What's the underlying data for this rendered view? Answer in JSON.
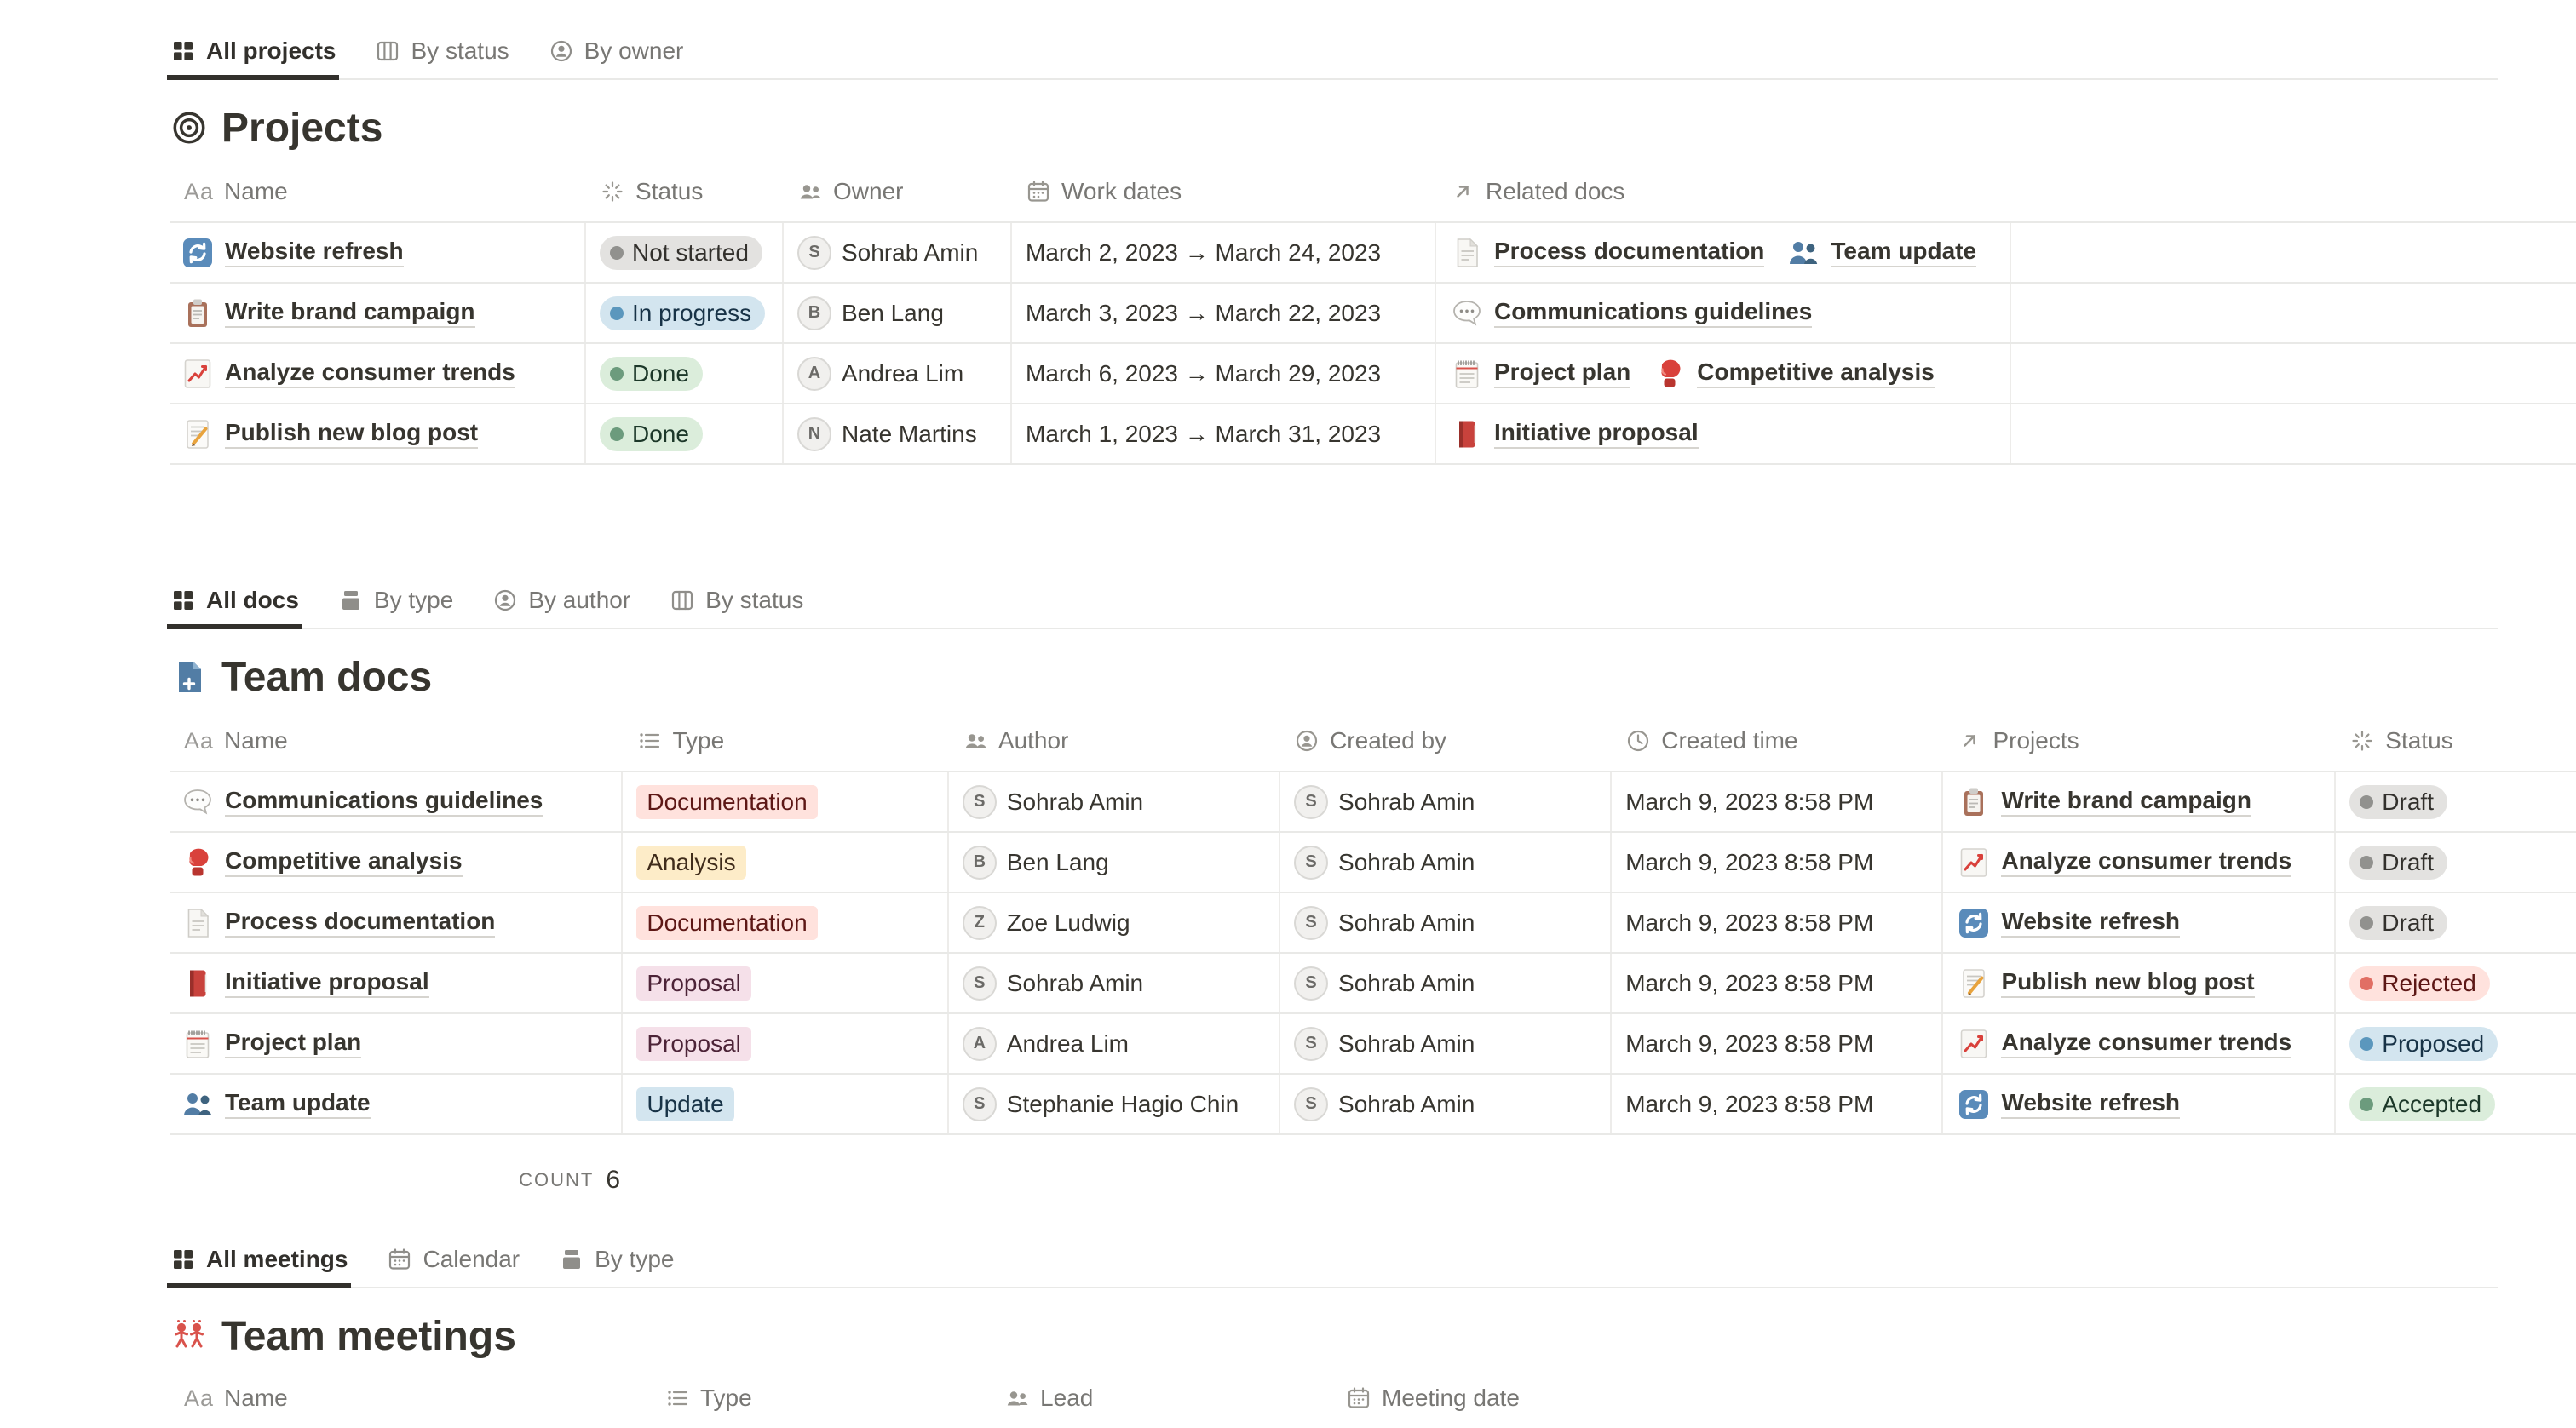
{
  "palette": {
    "row_border": "#E9E9E7",
    "text": "#37352F",
    "muted_text": "#787774",
    "accent_icon_red": "#D9534C",
    "accent_icon_blue": "#527DA5",
    "status": {
      "gray": {
        "bg": "#E3E2E0",
        "dot": "#91918E",
        "text": "#32302C"
      },
      "blue": {
        "bg": "#D3E5EF",
        "dot": "#5B97BD",
        "text": "#183347"
      },
      "green": {
        "bg": "#DBEDDB",
        "dot": "#6C9B7D",
        "text": "#1C3829"
      },
      "red": {
        "bg": "#FFE2DD",
        "dot": "#E16F64",
        "text": "#5D1715"
      }
    },
    "tag": {
      "red": {
        "bg": "#FFE2DD",
        "text": "#5D1715"
      },
      "yellow": {
        "bg": "#FDECC8",
        "text": "#402C1B"
      },
      "pink": {
        "bg": "#F5E0E9",
        "text": "#4C2337"
      },
      "blue": {
        "bg": "#D3E5EF",
        "text": "#183347"
      }
    }
  },
  "sections": [
    {
      "id": "projects",
      "tabs": [
        {
          "label": "All projects",
          "icon": "grid-view-icon",
          "active": true
        },
        {
          "label": "By status",
          "icon": "board-view-icon",
          "active": false
        },
        {
          "label": "By owner",
          "icon": "person-view-icon",
          "active": false
        }
      ],
      "title": {
        "icon": "target-icon",
        "text": "Projects"
      },
      "columns": [
        {
          "icon": "text-aa-icon",
          "label": "Name"
        },
        {
          "icon": "status-burst-icon",
          "label": "Status"
        },
        {
          "icon": "people-icon",
          "label": "Owner"
        },
        {
          "icon": "calendar-icon",
          "label": "Work dates"
        },
        {
          "icon": "arrow-ne-icon",
          "label": "Related docs"
        }
      ],
      "rows": [
        {
          "icon": "refresh-arrows-icon",
          "name": "Website refresh",
          "status": {
            "label": "Not started",
            "color": "gray"
          },
          "owner": "Sohrab Amin",
          "dates": "March 2, 2023 → March 24, 2023",
          "related": [
            {
              "icon": "page-icon",
              "label": "Process documentation"
            },
            {
              "icon": "people-blue-icon",
              "label": "Team update"
            }
          ]
        },
        {
          "icon": "clipboard-icon",
          "name": "Write brand campaign",
          "status": {
            "label": "In progress",
            "color": "blue"
          },
          "owner": "Ben Lang",
          "dates": "March 3, 2023 → March 22, 2023",
          "related": [
            {
              "icon": "speech-bubble-icon",
              "label": "Communications guidelines"
            }
          ]
        },
        {
          "icon": "chart-up-icon",
          "name": "Analyze consumer trends",
          "status": {
            "label": "Done",
            "color": "green"
          },
          "owner": "Andrea Lim",
          "dates": "March 6, 2023 → March 29, 2023",
          "related": [
            {
              "icon": "notepad-icon",
              "label": "Project plan"
            },
            {
              "icon": "boxing-glove-icon",
              "label": "Competitive analysis"
            }
          ]
        },
        {
          "icon": "memo-icon",
          "name": "Publish new blog post",
          "status": {
            "label": "Done",
            "color": "green"
          },
          "owner": "Nate Martins",
          "dates": "March 1, 2023 → March 31, 2023",
          "related": [
            {
              "icon": "red-book-icon",
              "label": "Initiative proposal"
            }
          ]
        }
      ]
    },
    {
      "id": "team-docs",
      "tabs": [
        {
          "label": "All docs",
          "icon": "grid-view-icon",
          "active": true
        },
        {
          "label": "By type",
          "icon": "stack-view-icon",
          "active": false
        },
        {
          "label": "By author",
          "icon": "person-view-icon",
          "active": false
        },
        {
          "label": "By status",
          "icon": "board-view-icon",
          "active": false
        }
      ],
      "title": {
        "icon": "doc-plus-icon",
        "text": "Team docs"
      },
      "columns": [
        {
          "icon": "text-aa-icon",
          "label": "Name"
        },
        {
          "icon": "select-list-icon",
          "label": "Type"
        },
        {
          "icon": "people-icon",
          "label": "Author"
        },
        {
          "icon": "person-view-icon",
          "label": "Created by"
        },
        {
          "icon": "clock-icon",
          "label": "Created time"
        },
        {
          "icon": "arrow-ne-icon",
          "label": "Projects"
        },
        {
          "icon": "status-burst-icon",
          "label": "Status"
        }
      ],
      "rows": [
        {
          "icon": "speech-bubble-icon",
          "name": "Communications guidelines",
          "type": {
            "label": "Documentation",
            "color": "red"
          },
          "author": "Sohrab Amin",
          "created_by": "Sohrab Amin",
          "created_time": "March 9, 2023 8:58 PM",
          "project": {
            "icon": "clipboard-icon",
            "label": "Write brand campaign"
          },
          "status": {
            "label": "Draft",
            "color": "gray"
          }
        },
        {
          "icon": "boxing-glove-icon",
          "name": "Competitive analysis",
          "type": {
            "label": "Analysis",
            "color": "yellow"
          },
          "author": "Ben Lang",
          "created_by": "Sohrab Amin",
          "created_time": "March 9, 2023 8:58 PM",
          "project": {
            "icon": "chart-up-icon",
            "label": "Analyze consumer trends"
          },
          "status": {
            "label": "Draft",
            "color": "gray"
          }
        },
        {
          "icon": "page-icon",
          "name": "Process documentation",
          "type": {
            "label": "Documentation",
            "color": "red"
          },
          "author": "Zoe Ludwig",
          "created_by": "Sohrab Amin",
          "created_time": "March 9, 2023 8:58 PM",
          "project": {
            "icon": "refresh-arrows-icon",
            "label": "Website refresh"
          },
          "status": {
            "label": "Draft",
            "color": "gray"
          }
        },
        {
          "icon": "red-book-icon",
          "name": "Initiative proposal",
          "type": {
            "label": "Proposal",
            "color": "pink"
          },
          "author": "Sohrab Amin",
          "created_by": "Sohrab Amin",
          "created_time": "March 9, 2023 8:58 PM",
          "project": {
            "icon": "memo-icon",
            "label": "Publish new blog post"
          },
          "status": {
            "label": "Rejected",
            "color": "red"
          }
        },
        {
          "icon": "notepad-icon",
          "name": "Project plan",
          "type": {
            "label": "Proposal",
            "color": "pink"
          },
          "author": "Andrea Lim",
          "created_by": "Sohrab Amin",
          "created_time": "March 9, 2023 8:58 PM",
          "project": {
            "icon": "chart-up-icon",
            "label": "Analyze consumer trends"
          },
          "status": {
            "label": "Proposed",
            "color": "blue"
          }
        },
        {
          "icon": "people-blue-icon",
          "name": "Team update",
          "type": {
            "label": "Update",
            "color": "blue"
          },
          "author": "Stephanie Hagio Chin",
          "created_by": "Sohrab Amin",
          "created_time": "March 9, 2023 8:58 PM",
          "project": {
            "icon": "refresh-arrows-icon",
            "label": "Website refresh"
          },
          "status": {
            "label": "Accepted",
            "color": "green"
          }
        }
      ],
      "count": {
        "label": "COUNT",
        "value": "6"
      }
    },
    {
      "id": "meetings",
      "tabs": [
        {
          "label": "All meetings",
          "icon": "grid-view-icon",
          "active": true
        },
        {
          "label": "Calendar",
          "icon": "calendar-icon",
          "active": false
        },
        {
          "label": "By type",
          "icon": "stack-view-icon",
          "active": false
        }
      ],
      "title": {
        "icon": "team-meetings-icon",
        "text": "Team meetings"
      },
      "columns": [
        {
          "icon": "text-aa-icon",
          "label": "Name"
        },
        {
          "icon": "select-list-icon",
          "label": "Type"
        },
        {
          "icon": "people-icon",
          "label": "Lead"
        },
        {
          "icon": "calendar-icon",
          "label": "Meeting date"
        }
      ]
    }
  ]
}
